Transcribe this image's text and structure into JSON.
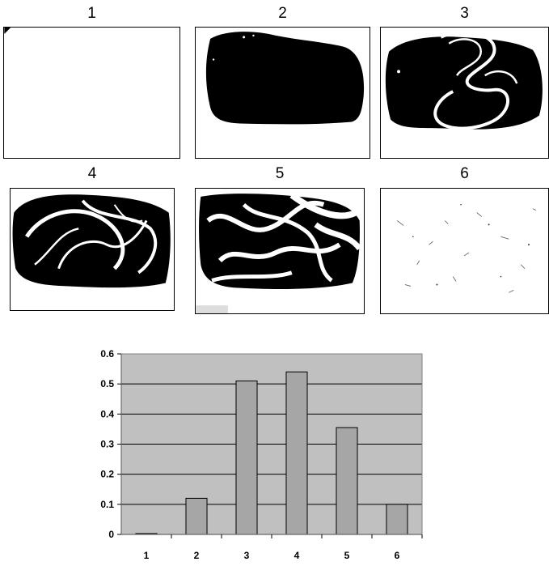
{
  "panels": [
    {
      "label": "1",
      "fill": "blank"
    },
    {
      "label": "2",
      "fill": "solid"
    },
    {
      "label": "3",
      "fill": "loop"
    },
    {
      "label": "4",
      "fill": "swirl"
    },
    {
      "label": "5",
      "fill": "streaks"
    },
    {
      "label": "6",
      "fill": "specks"
    }
  ],
  "chart_data": {
    "type": "bar",
    "categories": [
      "1",
      "2",
      "3",
      "4",
      "5",
      "6"
    ],
    "values": [
      0.003,
      0.12,
      0.51,
      0.54,
      0.355,
      0.1
    ],
    "ylim": [
      0,
      0.6
    ],
    "yticks": [
      "0",
      "0.1",
      "0.2",
      "0.3",
      "0.4",
      "0.5",
      "0.6"
    ],
    "ytick_values": [
      0,
      0.1,
      0.2,
      0.3,
      0.4,
      0.5,
      0.6
    ],
    "grid": true,
    "colors": {
      "plot_background": "#c0c0c0",
      "bar_fill": "#a6a6a6",
      "bar_stroke": "#000000"
    }
  }
}
